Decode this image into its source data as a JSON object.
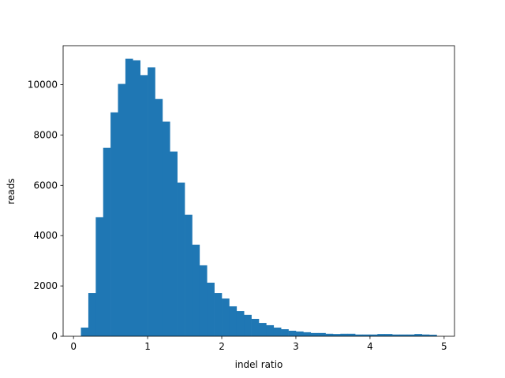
{
  "chart_data": {
    "type": "histogram",
    "xlabel": "indel ratio",
    "ylabel": "reads",
    "color": "#1f77b4",
    "bins": [
      0.1,
      0.2,
      0.3,
      0.4,
      0.5,
      0.6,
      0.7,
      0.8,
      0.9,
      1.0,
      1.1,
      1.2,
      1.3,
      1.4,
      1.5,
      1.6,
      1.7,
      1.8,
      1.9,
      2.0,
      2.1,
      2.2,
      2.3,
      2.4,
      2.5,
      2.6,
      2.7,
      2.8,
      2.9,
      3.0,
      3.1,
      3.2,
      3.3,
      3.4,
      3.5,
      3.6,
      3.7,
      3.8,
      3.9,
      4.0,
      4.1,
      4.2,
      4.3,
      4.4,
      4.5,
      4.6,
      4.7,
      4.8,
      4.9
    ],
    "counts": [
      345,
      1720,
      4730,
      7490,
      8900,
      10030,
      11030,
      10970,
      10380,
      10690,
      9430,
      8530,
      7340,
      6110,
      4830,
      3640,
      2820,
      2130,
      1720,
      1500,
      1190,
      1000,
      850,
      690,
      530,
      440,
      345,
      280,
      220,
      190,
      160,
      130,
      130,
      100,
      90,
      100,
      100,
      70,
      70,
      70,
      90,
      90,
      70,
      70,
      70,
      90,
      70,
      60
    ],
    "xlim": [
      -0.14,
      5.14
    ],
    "ylim": [
      0,
      11550
    ],
    "xticks": [
      0,
      1,
      2,
      3,
      4,
      5
    ],
    "yticks": [
      0,
      2000,
      4000,
      6000,
      8000,
      10000
    ]
  }
}
